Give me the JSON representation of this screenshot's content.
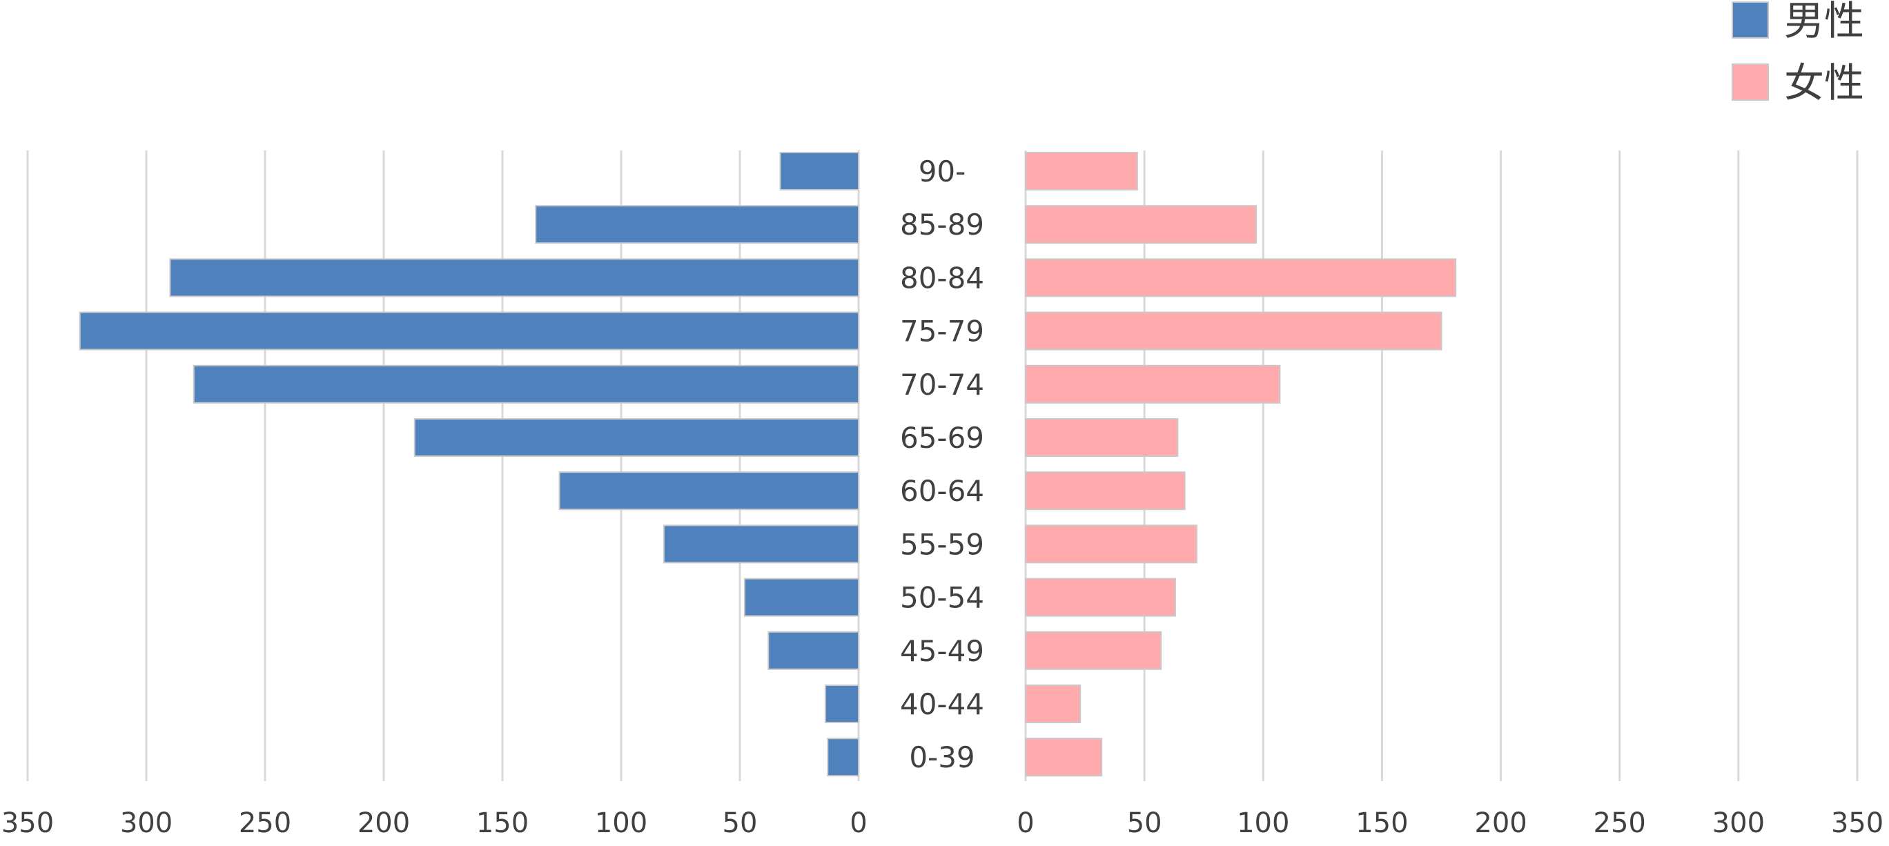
{
  "chart_data": {
    "type": "bar",
    "orientation": "horizontal",
    "layout": "population-pyramid",
    "categories": [
      "90-",
      "85-89",
      "80-84",
      "75-79",
      "70-74",
      "65-69",
      "60-64",
      "55-59",
      "50-54",
      "45-49",
      "40-44",
      "0-39"
    ],
    "series": [
      {
        "name": "男性",
        "color": "#4f81bd",
        "side": "left",
        "values": [
          33,
          136,
          290,
          328,
          280,
          187,
          126,
          82,
          48,
          38,
          14,
          13
        ]
      },
      {
        "name": "女性",
        "color": "#ffaaad",
        "side": "right",
        "values": [
          47,
          97,
          181,
          175,
          107,
          64,
          67,
          72,
          63,
          57,
          23,
          32
        ]
      }
    ],
    "xlim_left": [
      0,
      350
    ],
    "xlim_right": [
      0,
      350
    ],
    "x_ticks": [
      0,
      50,
      100,
      150,
      200,
      250,
      300,
      350
    ],
    "grid": true,
    "legend_position": "top-right",
    "title": "",
    "xlabel": "",
    "ylabel": ""
  }
}
